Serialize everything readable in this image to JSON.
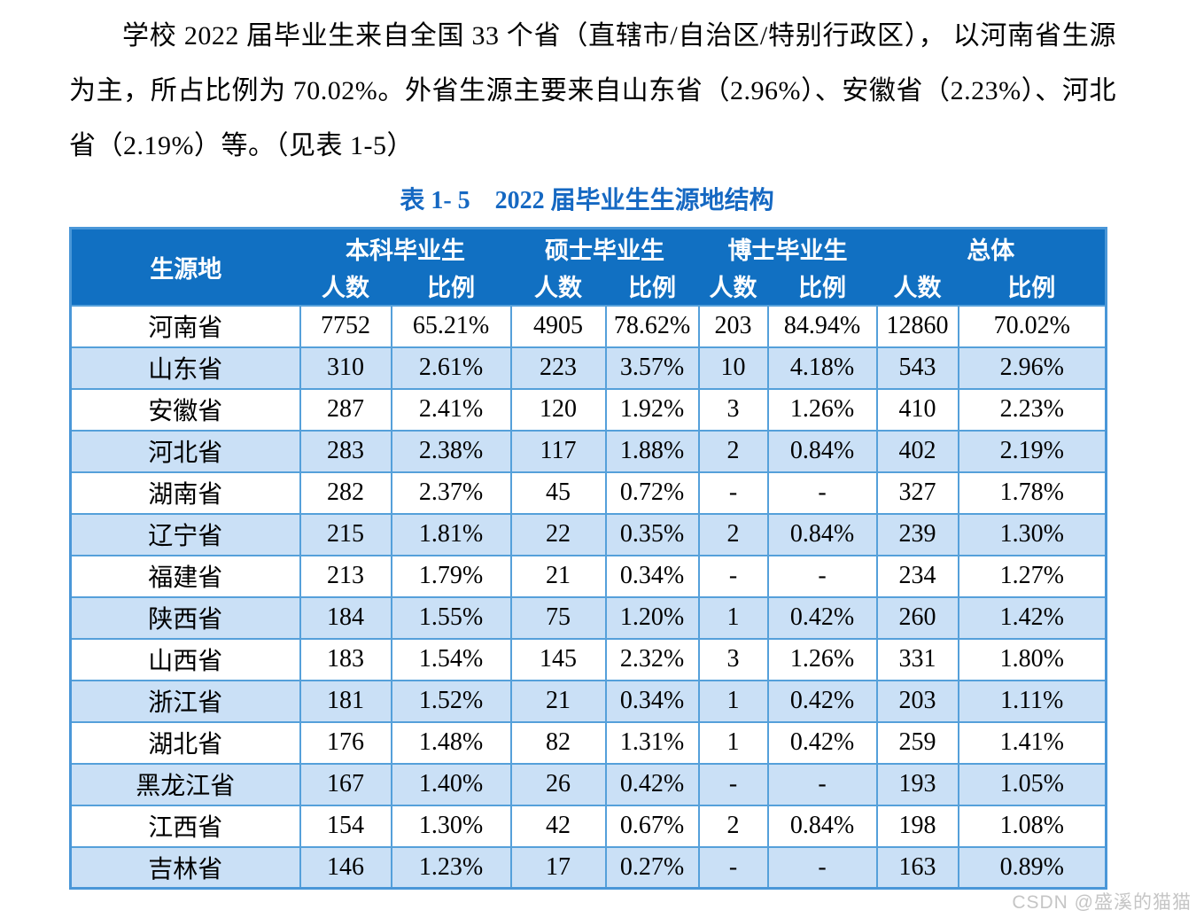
{
  "page": {
    "paragraph": "学校 2022 届毕业生来自全国 33 个省（直辖市/自治区/特别行政区）， 以河南省生源为主，所占比例为 70.02%。外省生源主要来自山东省（2.96%）、安徽省（2.23%）、河北省（2.19%）等。（见表 1-5）",
    "watermark": "CSDN @盛溪的猫猫"
  },
  "table": {
    "title": "表 1- 5　2022 届毕业生生源地结构",
    "header": {
      "origin": "生源地",
      "groups": [
        {
          "label": "本科毕业生",
          "sub": [
            "人数",
            "比例"
          ]
        },
        {
          "label": "硕士毕业生",
          "sub": [
            "人数",
            "比例"
          ]
        },
        {
          "label": "博士毕业生",
          "sub": [
            "人数",
            "比例"
          ]
        },
        {
          "label": "总体",
          "sub": [
            "人数",
            "比例"
          ]
        }
      ]
    },
    "rows": [
      {
        "province": "河南省",
        "values": [
          "7752",
          "65.21%",
          "4905",
          "78.62%",
          "203",
          "84.94%",
          "12860",
          "70.02%"
        ]
      },
      {
        "province": "山东省",
        "values": [
          "310",
          "2.61%",
          "223",
          "3.57%",
          "10",
          "4.18%",
          "543",
          "2.96%"
        ]
      },
      {
        "province": "安徽省",
        "values": [
          "287",
          "2.41%",
          "120",
          "1.92%",
          "3",
          "1.26%",
          "410",
          "2.23%"
        ]
      },
      {
        "province": "河北省",
        "values": [
          "283",
          "2.38%",
          "117",
          "1.88%",
          "2",
          "0.84%",
          "402",
          "2.19%"
        ]
      },
      {
        "province": "湖南省",
        "values": [
          "282",
          "2.37%",
          "45",
          "0.72%",
          "-",
          "-",
          "327",
          "1.78%"
        ]
      },
      {
        "province": "辽宁省",
        "values": [
          "215",
          "1.81%",
          "22",
          "0.35%",
          "2",
          "0.84%",
          "239",
          "1.30%"
        ]
      },
      {
        "province": "福建省",
        "values": [
          "213",
          "1.79%",
          "21",
          "0.34%",
          "-",
          "-",
          "234",
          "1.27%"
        ]
      },
      {
        "province": "陕西省",
        "values": [
          "184",
          "1.55%",
          "75",
          "1.20%",
          "1",
          "0.42%",
          "260",
          "1.42%"
        ]
      },
      {
        "province": "山西省",
        "values": [
          "183",
          "1.54%",
          "145",
          "2.32%",
          "3",
          "1.26%",
          "331",
          "1.80%"
        ]
      },
      {
        "province": "浙江省",
        "values": [
          "181",
          "1.52%",
          "21",
          "0.34%",
          "1",
          "0.42%",
          "203",
          "1.11%"
        ]
      },
      {
        "province": "湖北省",
        "values": [
          "176",
          "1.48%",
          "82",
          "1.31%",
          "1",
          "0.42%",
          "259",
          "1.41%"
        ]
      },
      {
        "province": "黑龙江省",
        "values": [
          "167",
          "1.40%",
          "26",
          "0.42%",
          "-",
          "-",
          "193",
          "1.05%"
        ]
      },
      {
        "province": "江西省",
        "values": [
          "154",
          "1.30%",
          "42",
          "0.67%",
          "2",
          "0.84%",
          "198",
          "1.08%"
        ]
      },
      {
        "province": "吉林省",
        "values": [
          "146",
          "1.23%",
          "17",
          "0.27%",
          "-",
          "-",
          "163",
          "0.89%"
        ]
      }
    ],
    "colors": {
      "header_bg": "#1170c2",
      "row_alt_bg": "#cae0f6",
      "border": "#55a0da",
      "title_text": "#1568c2"
    }
  }
}
